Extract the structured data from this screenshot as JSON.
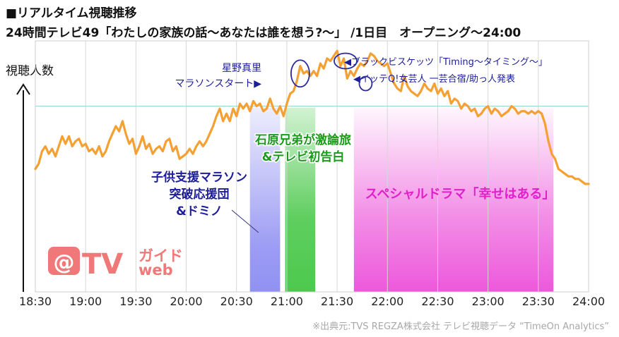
{
  "header": {
    "title": "■リアルタイム視聴推移",
    "subtitle": "24時間テレビ49「わたしの家族の話〜あなたは誰を想う?〜」 /1日目　オープニング〜24:00"
  },
  "logo": {
    "text_at": "@",
    "text_tv": "TV",
    "text_guide": "ガイド",
    "text_web": "web",
    "color": "#f07878"
  },
  "source": "※出典元:TVS REGZA株式会社 テレビ視聴データ “TimeOn Analytics”",
  "chart_data": {
    "type": "line",
    "ylabel": "視聴人数",
    "x_tick_labels": [
      "18:30",
      "19:00",
      "19:30",
      "20:00",
      "20:30",
      "21:00",
      "21:30",
      "22:00",
      "22:30",
      "23:00",
      "23:30",
      "24:00"
    ],
    "x_range_minutes": [
      0,
      330
    ],
    "y_range": [
      0,
      100
    ],
    "reference_line": 74,
    "line_color": "#f5a033",
    "series": [
      {
        "points": [
          [
            0,
            49
          ],
          [
            2,
            51
          ],
          [
            4,
            56
          ],
          [
            6,
            58
          ],
          [
            8,
            55
          ],
          [
            10,
            57
          ],
          [
            12,
            54
          ],
          [
            14,
            58
          ],
          [
            16,
            62
          ],
          [
            18,
            59
          ],
          [
            20,
            62
          ],
          [
            22,
            58
          ],
          [
            24,
            60
          ],
          [
            26,
            61
          ],
          [
            28,
            58
          ],
          [
            30,
            59
          ],
          [
            32,
            56
          ],
          [
            34,
            57
          ],
          [
            36,
            55
          ],
          [
            38,
            58
          ],
          [
            40,
            54
          ],
          [
            42,
            56
          ],
          [
            44,
            60
          ],
          [
            46,
            63
          ],
          [
            48,
            66
          ],
          [
            50,
            64
          ],
          [
            52,
            68
          ],
          [
            54,
            63
          ],
          [
            56,
            59
          ],
          [
            58,
            61
          ],
          [
            60,
            55
          ],
          [
            62,
            58
          ],
          [
            64,
            62
          ],
          [
            66,
            57
          ],
          [
            68,
            59
          ],
          [
            70,
            55
          ],
          [
            72,
            57
          ],
          [
            74,
            58
          ],
          [
            76,
            56
          ],
          [
            78,
            60
          ],
          [
            80,
            61
          ],
          [
            82,
            56
          ],
          [
            84,
            58
          ],
          [
            86,
            53
          ],
          [
            88,
            54
          ],
          [
            90,
            55
          ],
          [
            92,
            57
          ],
          [
            94,
            55
          ],
          [
            96,
            58
          ],
          [
            98,
            60
          ],
          [
            100,
            58
          ],
          [
            102,
            60
          ],
          [
            104,
            63
          ],
          [
            106,
            66
          ],
          [
            108,
            70
          ],
          [
            110,
            73
          ],
          [
            112,
            68
          ],
          [
            114,
            71
          ],
          [
            116,
            68
          ],
          [
            118,
            73
          ],
          [
            120,
            70
          ],
          [
            122,
            75
          ],
          [
            124,
            73
          ],
          [
            126,
            75
          ],
          [
            128,
            72
          ],
          [
            130,
            76
          ],
          [
            132,
            74
          ],
          [
            134,
            75
          ],
          [
            136,
            72
          ],
          [
            138,
            73
          ],
          [
            140,
            77
          ],
          [
            142,
            73
          ],
          [
            144,
            71
          ],
          [
            146,
            74
          ],
          [
            148,
            70
          ],
          [
            150,
            75
          ],
          [
            152,
            79
          ],
          [
            154,
            80
          ],
          [
            156,
            84
          ],
          [
            158,
            90
          ],
          [
            160,
            87
          ],
          [
            162,
            88
          ],
          [
            164,
            86
          ],
          [
            166,
            88
          ],
          [
            168,
            86
          ],
          [
            170,
            91
          ],
          [
            172,
            89
          ],
          [
            174,
            93
          ],
          [
            176,
            92
          ],
          [
            178,
            94
          ],
          [
            180,
            96
          ],
          [
            182,
            90
          ],
          [
            184,
            93
          ],
          [
            186,
            85
          ],
          [
            188,
            88
          ],
          [
            190,
            86
          ],
          [
            192,
            89
          ],
          [
            194,
            91
          ],
          [
            196,
            90
          ],
          [
            198,
            92
          ],
          [
            200,
            95
          ],
          [
            202,
            94
          ],
          [
            204,
            92
          ],
          [
            206,
            91
          ],
          [
            208,
            90
          ],
          [
            210,
            91
          ],
          [
            212,
            87
          ],
          [
            214,
            83
          ],
          [
            216,
            81
          ],
          [
            218,
            80
          ],
          [
            220,
            86
          ],
          [
            222,
            82
          ],
          [
            224,
            80
          ],
          [
            226,
            79
          ],
          [
            228,
            78
          ],
          [
            230,
            80
          ],
          [
            232,
            83
          ],
          [
            234,
            81
          ],
          [
            236,
            80
          ],
          [
            238,
            83
          ],
          [
            240,
            79
          ],
          [
            242,
            81
          ],
          [
            244,
            78
          ],
          [
            246,
            80
          ],
          [
            248,
            75
          ],
          [
            250,
            77
          ],
          [
            252,
            76
          ],
          [
            254,
            73
          ],
          [
            256,
            75
          ],
          [
            258,
            74
          ],
          [
            260,
            72
          ],
          [
            262,
            73
          ],
          [
            264,
            70
          ],
          [
            266,
            71
          ],
          [
            268,
            73
          ],
          [
            270,
            74
          ],
          [
            272,
            71
          ],
          [
            274,
            73
          ],
          [
            276,
            72
          ],
          [
            278,
            70
          ],
          [
            280,
            71
          ],
          [
            282,
            72
          ],
          [
            284,
            74
          ],
          [
            286,
            73
          ],
          [
            288,
            71
          ],
          [
            290,
            72
          ],
          [
            292,
            72
          ],
          [
            294,
            71
          ],
          [
            296,
            72
          ],
          [
            298,
            71
          ],
          [
            300,
            72
          ],
          [
            302,
            71
          ],
          [
            304,
            67
          ],
          [
            306,
            60
          ],
          [
            308,
            55
          ],
          [
            310,
            53
          ],
          [
            312,
            49
          ],
          [
            314,
            48
          ],
          [
            316,
            47
          ],
          [
            318,
            46
          ],
          [
            320,
            46
          ],
          [
            322,
            45
          ],
          [
            324,
            45
          ],
          [
            326,
            44
          ],
          [
            328,
            43
          ],
          [
            330,
            43
          ]
        ]
      }
    ],
    "bands": [
      {
        "from": 128,
        "to": 146,
        "color": "#8b8bf2",
        "label_lines": [
          "子供支援マラソン",
          "突破応援団",
          "&ドミノ"
        ],
        "label_color": "#1d1d9a"
      },
      {
        "from": 149,
        "to": 167,
        "color": "#4dc94d",
        "label_lines": [
          "石原兄弟が激論旅",
          "&テレビ初告白"
        ],
        "label_color": "#1a9a1a"
      },
      {
        "from": 190,
        "to": 309,
        "color": "#ec4fd9",
        "label_lines": [
          "スペシャルドラマ「幸せはある」"
        ],
        "label_color": "#e020c8"
      }
    ],
    "annotations": [
      {
        "lines": [
          "星野真里",
          "マラソンスタート▶"
        ],
        "color": "#1d1d9a"
      },
      {
        "lines": [
          "◀ブラックビスケッツ「Timing〜タイミング〜」"
        ],
        "color": "#1d1d9a"
      },
      {
        "lines": [
          "◀イッテQ!女芸人 一芸合宿/助っ人発表"
        ],
        "color": "#1d1d9a"
      }
    ]
  }
}
